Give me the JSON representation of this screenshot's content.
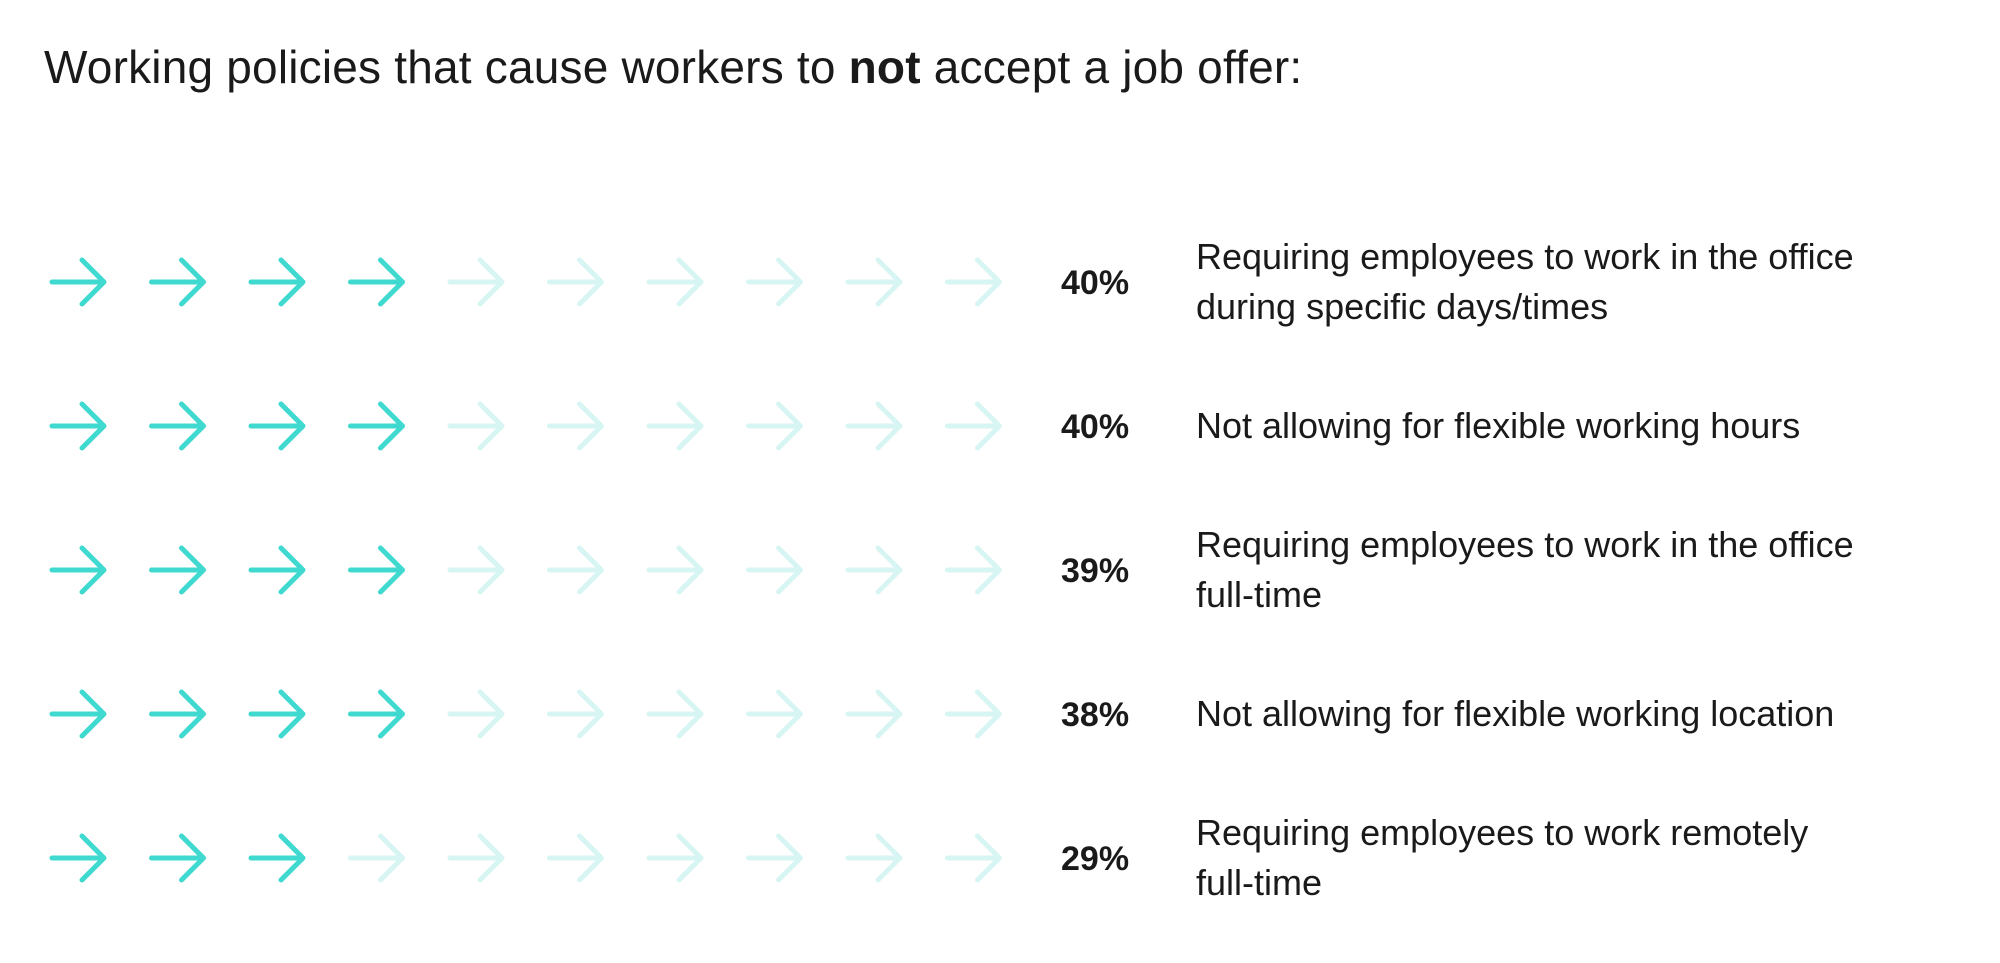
{
  "chart_data": {
    "type": "pictograph",
    "title": {
      "before": "Working policies that cause workers to ",
      "emphasis": "not",
      "after": " accept a job offer:"
    },
    "icon": "arrow-right-icon",
    "icons_per_row": 10,
    "colors": {
      "filled": "#3fd9cf",
      "unfilled": "#d7f6f3"
    },
    "rows": [
      {
        "value": 40,
        "value_label": "40%",
        "filled_icons": 4,
        "label_lines": [
          "Requiring employees to work in the office",
          "during specific days/times"
        ]
      },
      {
        "value": 40,
        "value_label": "40%",
        "filled_icons": 4,
        "label_lines": [
          "Not allowing for flexible working hours"
        ]
      },
      {
        "value": 39,
        "value_label": "39%",
        "filled_icons": 4,
        "label_lines": [
          "Requiring employees to work in the office",
          "full-time"
        ]
      },
      {
        "value": 38,
        "value_label": "38%",
        "filled_icons": 4,
        "label_lines": [
          "Not allowing for flexible working location"
        ]
      },
      {
        "value": 29,
        "value_label": "29%",
        "filled_icons": 3,
        "label_lines": [
          "Requiring employees to work remotely",
          "full-time"
        ]
      }
    ]
  }
}
